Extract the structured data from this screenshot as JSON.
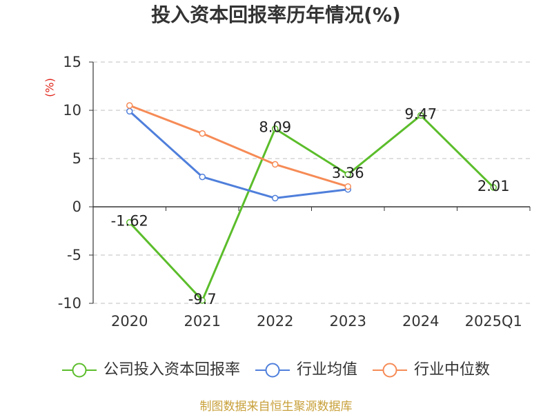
{
  "chart_data": {
    "type": "line",
    "title": "投入资本回报率历年情况(%)",
    "ylabel": "(%)",
    "ylabel_color": "#e0261b",
    "categories": [
      "2020",
      "2021",
      "2022",
      "2023",
      "2024",
      "2025Q1"
    ],
    "ylim": [
      -10,
      15
    ],
    "yticks": [
      15,
      10,
      5,
      0,
      -5,
      -10
    ],
    "grid": true,
    "grid_style": "dashed",
    "legend": "bottom",
    "series": [
      {
        "name": "公司投入资本回报率",
        "color": "#5bbd2b",
        "data_labels": true,
        "values": [
          -1.62,
          -9.7,
          8.09,
          3.36,
          9.47,
          2.01
        ]
      },
      {
        "name": "行业均值",
        "color": "#4f7fdb",
        "data_labels": false,
        "values": [
          9.9,
          3.1,
          0.9,
          1.8,
          null,
          null
        ]
      },
      {
        "name": "行业中位数",
        "color": "#f68b56",
        "data_labels": false,
        "values": [
          10.5,
          7.6,
          4.4,
          2.1,
          null,
          null
        ]
      }
    ]
  },
  "source_note": {
    "text": "制图数据来自恒生聚源数据库",
    "color": "#c8a03a"
  }
}
